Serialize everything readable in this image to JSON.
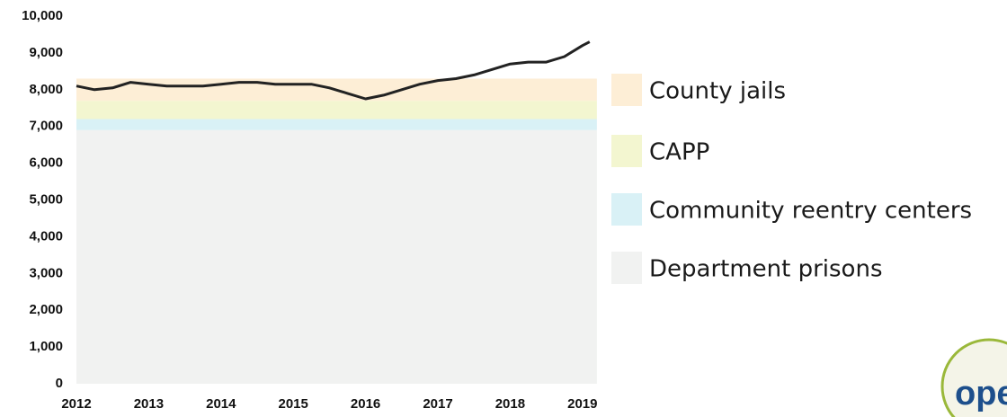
{
  "chart_data": {
    "type": "area",
    "x": [
      2012,
      2019.2
    ],
    "series": [
      {
        "name": "Department prisons",
        "color": "#f1f2f1",
        "values": [
          6900,
          6900
        ]
      },
      {
        "name": "Community reentry centers",
        "color": "#d9f1f6",
        "values": [
          300,
          300
        ]
      },
      {
        "name": "CAPP",
        "color": "#f3f6d0",
        "values": [
          500,
          500
        ]
      },
      {
        "name": "County jails",
        "color": "#fdeed6",
        "values": [
          600,
          600
        ]
      }
    ],
    "line": {
      "color": "#222222",
      "x": [
        2012,
        2012.25,
        2012.5,
        2012.75,
        2013,
        2013.25,
        2013.5,
        2013.75,
        2014,
        2014.25,
        2014.5,
        2014.75,
        2015,
        2015.25,
        2015.5,
        2015.75,
        2016,
        2016.25,
        2016.5,
        2016.75,
        2017,
        2017.25,
        2017.5,
        2017.75,
        2018,
        2018.25,
        2018.5,
        2018.75,
        2019,
        2019.1
      ],
      "values": [
        8100,
        8000,
        8050,
        8200,
        8150,
        8100,
        8100,
        8100,
        8150,
        8200,
        8200,
        8150,
        8150,
        8150,
        8050,
        7900,
        7750,
        7850,
        8000,
        8150,
        8250,
        8300,
        8400,
        8550,
        8700,
        8750,
        8750,
        8900,
        9200,
        9300
      ]
    },
    "xlim": [
      2012,
      2019.2
    ],
    "xticks": [
      2012,
      2013,
      2014,
      2015,
      2016,
      2017,
      2018,
      2019
    ],
    "ylim": [
      0,
      10000
    ],
    "yticks": [
      0,
      {
        "value": 1000,
        "label": "1,000"
      },
      {
        "value": 2000,
        "label": "2,000"
      },
      {
        "value": 3000,
        "label": "3,000"
      },
      {
        "value": 4000,
        "label": "4,000"
      },
      {
        "value": 5000,
        "label": "5,000"
      },
      {
        "value": 6000,
        "label": "6,000"
      },
      {
        "value": 7000,
        "label": "7,000"
      },
      {
        "value": 8000,
        "label": "8,000"
      },
      {
        "value": 9000,
        "label": "9,000"
      },
      {
        "value": 10000,
        "label": "10,000"
      }
    ],
    "legend": "right"
  },
  "logo": "ope"
}
